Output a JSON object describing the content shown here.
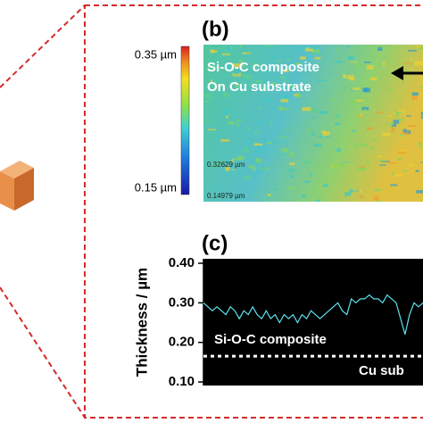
{
  "panel_b": {
    "label": "(b)",
    "colorbar_max": "0.35 µm",
    "colorbar_min": "0.15 µm",
    "text_line1": "Si-O-C composite",
    "text_line2": "On Cu substrate",
    "marker_1": "0.32629 µm",
    "marker_2": "0.14979 µm"
  },
  "chart_data": {
    "type": "line",
    "label": "(c)",
    "y_label": "Thickness / µm",
    "ylim": [
      0.1,
      0.4
    ],
    "yticks": [
      {
        "value": 0.1,
        "label": "0.10"
      },
      {
        "value": 0.2,
        "label": "0.20"
      },
      {
        "value": 0.3,
        "label": "0.30"
      },
      {
        "value": 0.4,
        "label": "0.40"
      }
    ],
    "series": [
      {
        "color": "#5ce1ee",
        "values": [
          0.3,
          0.29,
          0.28,
          0.29,
          0.28,
          0.27,
          0.29,
          0.28,
          0.26,
          0.28,
          0.27,
          0.29,
          0.27,
          0.26,
          0.28,
          0.26,
          0.27,
          0.25,
          0.27,
          0.26,
          0.27,
          0.25,
          0.27,
          0.26,
          0.28,
          0.27,
          0.26,
          0.27,
          0.28,
          0.29,
          0.3,
          0.28,
          0.27,
          0.31,
          0.3,
          0.31,
          0.31,
          0.32,
          0.31,
          0.31,
          0.3,
          0.32,
          0.31,
          0.3,
          0.26,
          0.22,
          0.27,
          0.3,
          0.29,
          0.3
        ]
      }
    ],
    "interface_level": 0.165,
    "annotations": [
      "Si-O-C composite",
      "Cu sub"
    ]
  }
}
